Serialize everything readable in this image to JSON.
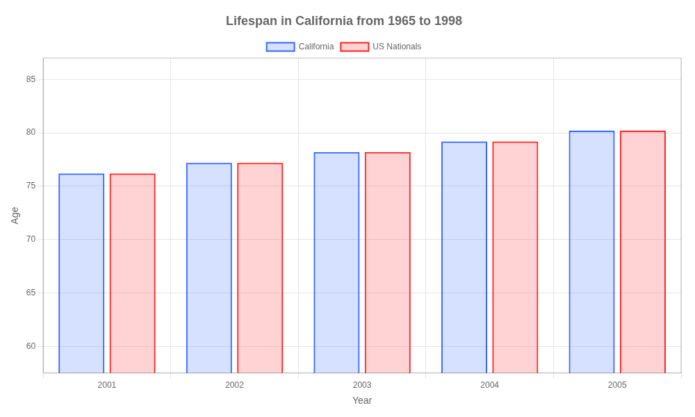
{
  "chart_data": {
    "type": "bar",
    "title": "Lifespan in California from 1965 to 1998",
    "x_label": "Year",
    "y_label": "Age",
    "categories": [
      "2001",
      "2002",
      "2003",
      "2004",
      "2005"
    ],
    "series": [
      {
        "name": "California",
        "color": "#3366ff",
        "values": [
          76.2,
          77.2,
          78.2,
          79.2,
          80.2
        ]
      },
      {
        "name": "US Nationals",
        "color": "#ff2222",
        "values": [
          76.2,
          77.2,
          78.2,
          79.2,
          80.2
        ]
      }
    ],
    "ylim": [
      57.5,
      87
    ],
    "yticks": [
      60,
      65,
      70,
      75,
      80,
      85
    ],
    "grid": true,
    "legend": "top"
  }
}
